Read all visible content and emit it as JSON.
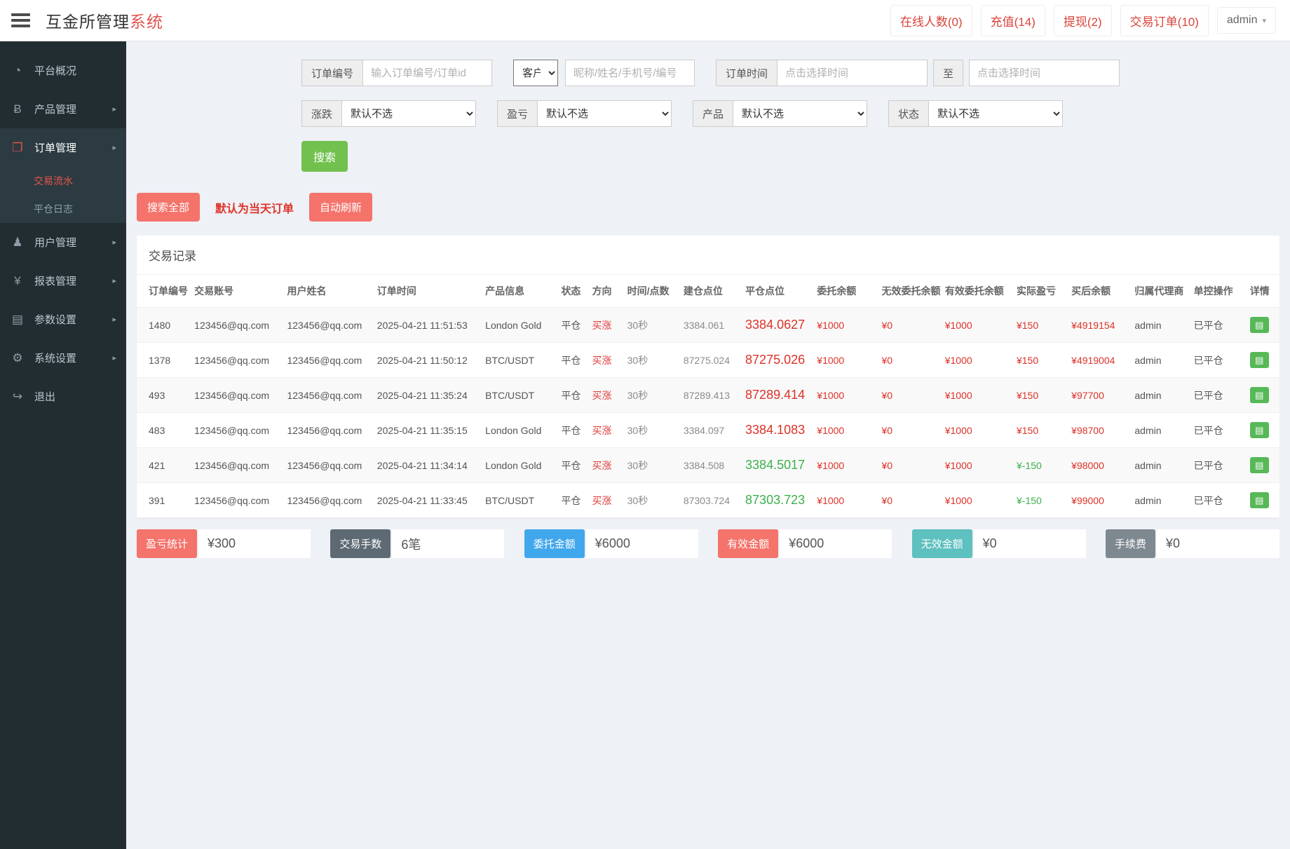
{
  "header": {
    "brand_prefix": "互金所管理",
    "brand_suffix": "系统",
    "stats": [
      {
        "label": "在线人数(0)"
      },
      {
        "label": "充值(14)"
      },
      {
        "label": "提现(2)"
      },
      {
        "label": "交易订单(10)"
      }
    ],
    "user": "admin"
  },
  "sidebar": {
    "items": [
      {
        "name": "dashboard",
        "label": "平台概况",
        "icon": "gauge-icon",
        "caret": false,
        "active": false
      },
      {
        "name": "products",
        "label": "产品管理",
        "icon": "bitcoin-icon",
        "caret": true,
        "active": false
      },
      {
        "name": "orders",
        "label": "订单管理",
        "icon": "orders-icon",
        "caret": true,
        "active": true,
        "children": [
          {
            "name": "trade-flow",
            "label": "交易流水",
            "active": true
          },
          {
            "name": "close-log",
            "label": "平仓日志",
            "active": false
          }
        ]
      },
      {
        "name": "users",
        "label": "用户管理",
        "icon": "user-icon",
        "caret": true,
        "active": false
      },
      {
        "name": "reports",
        "label": "报表管理",
        "icon": "yen-icon",
        "caret": true,
        "active": false
      },
      {
        "name": "params",
        "label": "参数设置",
        "icon": "files-icon",
        "caret": true,
        "active": false
      },
      {
        "name": "system",
        "label": "系统设置",
        "icon": "gear-icon",
        "caret": true,
        "active": false
      },
      {
        "name": "logout",
        "label": "退出",
        "icon": "logout-icon",
        "caret": false,
        "active": false
      }
    ]
  },
  "filters": {
    "order_no": {
      "label": "订单编号",
      "placeholder": "输入订单编号/订单id"
    },
    "customer": {
      "selected": "客户"
    },
    "nickname": {
      "placeholder": "昵称/姓名/手机号/编号"
    },
    "order_time": {
      "label": "订单时间",
      "placeholder": "点击选择时间",
      "to_label": "至",
      "placeholder2": "点击选择时间"
    },
    "trend": {
      "label": "涨跌",
      "selected": "默认不选"
    },
    "profit": {
      "label": "盈亏",
      "selected": "默认不选"
    },
    "product": {
      "label": "产品",
      "selected": "默认不选"
    },
    "status": {
      "label": "状态",
      "selected": "默认不选"
    }
  },
  "actions": {
    "search": "搜索",
    "search_all": "搜索全部",
    "default_today": "默认为当天订单",
    "auto_refresh": "自动刷新"
  },
  "table": {
    "title": "交易记录",
    "columns": [
      {
        "key": "order_no",
        "label": "订单编号"
      },
      {
        "key": "account",
        "label": "交易账号"
      },
      {
        "key": "username",
        "label": "用户姓名"
      },
      {
        "key": "order_time",
        "label": "订单时间"
      },
      {
        "key": "product",
        "label": "产品信息"
      },
      {
        "key": "status",
        "label": "状态"
      },
      {
        "key": "direction",
        "label": "方向"
      },
      {
        "key": "duration",
        "label": "时间/点数"
      },
      {
        "key": "open_point",
        "label": "建仓点位"
      },
      {
        "key": "close_point",
        "label": "平仓点位"
      },
      {
        "key": "entrust",
        "label": "委托余额"
      },
      {
        "key": "invalid",
        "label": "无效委托余额"
      },
      {
        "key": "valid",
        "label": "有效委托余额"
      },
      {
        "key": "profit",
        "label": "实际盈亏"
      },
      {
        "key": "after",
        "label": "买后余额"
      },
      {
        "key": "agent",
        "label": "归属代理商"
      },
      {
        "key": "control",
        "label": "单控操作"
      },
      {
        "key": "detail",
        "label": "详情"
      }
    ],
    "rows": [
      {
        "order_no": "1480",
        "account": "123456@qq.com",
        "username": "123456@qq.com",
        "order_time": "2025-04-21 11:51:53",
        "product": "London Gold",
        "status": "平仓",
        "direction": "买涨",
        "duration": "30秒",
        "open_point": "3384.061",
        "close_point": "3384.0627",
        "trend": "up",
        "entrust": "¥1000",
        "invalid": "¥0",
        "valid": "¥1000",
        "profit": "¥150",
        "after": "¥4919154",
        "agent": "admin",
        "control": "已平仓"
      },
      {
        "order_no": "1378",
        "account": "123456@qq.com",
        "username": "123456@qq.com",
        "order_time": "2025-04-21 11:50:12",
        "product": "BTC/USDT",
        "status": "平仓",
        "direction": "买涨",
        "duration": "30秒",
        "open_point": "87275.024",
        "close_point": "87275.026",
        "trend": "up",
        "entrust": "¥1000",
        "invalid": "¥0",
        "valid": "¥1000",
        "profit": "¥150",
        "after": "¥4919004",
        "agent": "admin",
        "control": "已平仓"
      },
      {
        "order_no": "493",
        "account": "123456@qq.com",
        "username": "123456@qq.com",
        "order_time": "2025-04-21 11:35:24",
        "product": "BTC/USDT",
        "status": "平仓",
        "direction": "买涨",
        "duration": "30秒",
        "open_point": "87289.413",
        "close_point": "87289.414",
        "trend": "up",
        "entrust": "¥1000",
        "invalid": "¥0",
        "valid": "¥1000",
        "profit": "¥150",
        "after": "¥97700",
        "agent": "admin",
        "control": "已平仓"
      },
      {
        "order_no": "483",
        "account": "123456@qq.com",
        "username": "123456@qq.com",
        "order_time": "2025-04-21 11:35:15",
        "product": "London Gold",
        "status": "平仓",
        "direction": "买涨",
        "duration": "30秒",
        "open_point": "3384.097",
        "close_point": "3384.1083",
        "trend": "up",
        "entrust": "¥1000",
        "invalid": "¥0",
        "valid": "¥1000",
        "profit": "¥150",
        "after": "¥98700",
        "agent": "admin",
        "control": "已平仓"
      },
      {
        "order_no": "421",
        "account": "123456@qq.com",
        "username": "123456@qq.com",
        "order_time": "2025-04-21 11:34:14",
        "product": "London Gold",
        "status": "平仓",
        "direction": "买涨",
        "duration": "30秒",
        "open_point": "3384.508",
        "close_point": "3384.5017",
        "trend": "down",
        "entrust": "¥1000",
        "invalid": "¥0",
        "valid": "¥1000",
        "profit": "¥-150",
        "after": "¥98000",
        "agent": "admin",
        "control": "已平仓"
      },
      {
        "order_no": "391",
        "account": "123456@qq.com",
        "username": "123456@qq.com",
        "order_time": "2025-04-21 11:33:45",
        "product": "BTC/USDT",
        "status": "平仓",
        "direction": "买涨",
        "duration": "30秒",
        "open_point": "87303.724",
        "close_point": "87303.723",
        "trend": "down",
        "entrust": "¥1000",
        "invalid": "¥0",
        "valid": "¥1000",
        "profit": "¥-150",
        "after": "¥99000",
        "agent": "admin",
        "control": "已平仓"
      }
    ]
  },
  "summary": [
    {
      "name": "profit-total",
      "label": "盈亏统计",
      "value": "¥300",
      "color": "#f4736b"
    },
    {
      "name": "trade-count",
      "label": "交易手数",
      "value": "6笔",
      "color": "#5d6a74"
    },
    {
      "name": "entrust-amount",
      "label": "委托金额",
      "value": "¥6000",
      "color": "#41a7ec"
    },
    {
      "name": "valid-amount",
      "label": "有效金额",
      "value": "¥6000",
      "color": "#f4736b"
    },
    {
      "name": "invalid-amount",
      "label": "无效金额",
      "value": "¥0",
      "color": "#5ec0bf"
    },
    {
      "name": "fee",
      "label": "手续费",
      "value": "¥0",
      "color": "#7e8890"
    }
  ]
}
